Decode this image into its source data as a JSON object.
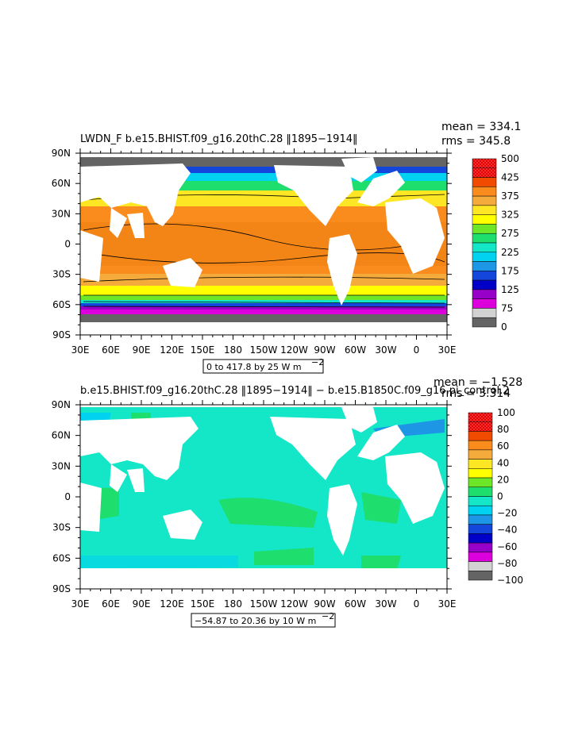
{
  "panels": [
    {
      "title": "LWDN_F  b.e15.BHIST.f09_g16.20thC.28  ‖1895−1914‖",
      "mean_label": "mean = 334.1",
      "rms_label": "rms = 345.8",
      "range_label": "0 to 417.8 by 25  W m",
      "range_unit_exp": "−2",
      "colorbar_labels": [
        "500",
        "425",
        "375",
        "325",
        "275",
        "225",
        "175",
        "125",
        "75",
        "0"
      ],
      "colorbar_colors": [
        "#b40000",
        "#e60000",
        "#f04b00",
        "#fa8c1e",
        "#f5aa3c",
        "#fde725",
        "#ffff00",
        "#6ee628",
        "#1ede6e",
        "#14e6c8",
        "#00d2f0",
        "#1e96e6",
        "#1446dc",
        "#0000c8",
        "#9600c8",
        "#dc00dc",
        "#d2d2d2",
        "#646464"
      ]
    },
    {
      "title": "b.e15.BHIST.f09_g16.20thC.28  ‖1895−1914‖  −  b.e15.B1850C.f09_g16.pi_control.2",
      "mean_label": "mean = −1.528",
      "rms_label": "rms = 3.314",
      "range_label": "−54.87 to 20.36 by 10  W m",
      "range_unit_exp": "−2",
      "colorbar_labels": [
        "100",
        "80",
        "60",
        "40",
        "20",
        "0",
        "−20",
        "−40",
        "−60",
        "−80",
        "−100"
      ],
      "colorbar_colors": [
        "#b40000",
        "#e60000",
        "#f04b00",
        "#fa8c1e",
        "#f5aa3c",
        "#fde725",
        "#ffff00",
        "#6ee628",
        "#1ede6e",
        "#14e6c8",
        "#00d2f0",
        "#1e96e6",
        "#1446dc",
        "#0000c8",
        "#9600c8",
        "#dc00dc",
        "#d2d2d2",
        "#646464"
      ]
    }
  ],
  "lon_labels": [
    "30E",
    "60E",
    "90E",
    "120E",
    "150E",
    "180",
    "150W",
    "120W",
    "90W",
    "60W",
    "30W",
    "0",
    "30E"
  ],
  "lat_labels": [
    "90N",
    "60N",
    "30N",
    "0",
    "30S",
    "60S",
    "90S"
  ]
}
